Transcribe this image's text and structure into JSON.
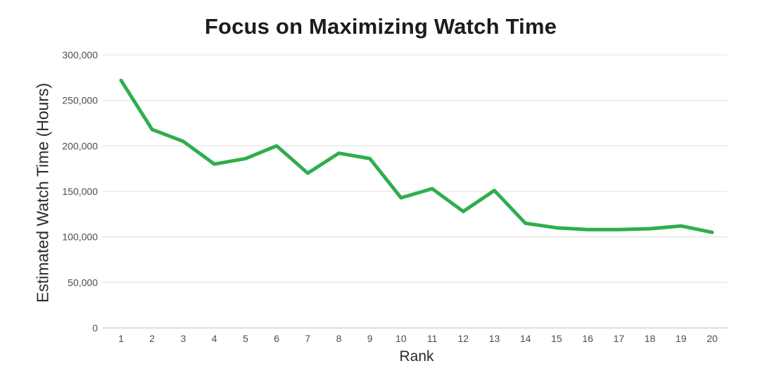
{
  "chart_data": {
    "type": "line",
    "title": "Focus on Maximizing Watch Time",
    "xlabel": "Rank",
    "ylabel": "Estimated Watch Time (Hours)",
    "x": [
      1,
      2,
      3,
      4,
      5,
      6,
      7,
      8,
      9,
      10,
      11,
      12,
      13,
      14,
      15,
      16,
      17,
      18,
      19,
      20
    ],
    "series": [
      {
        "name": "Estimated Watch Time",
        "values": [
          272000,
          218000,
          205000,
          180000,
          186000,
          200000,
          170000,
          192000,
          186000,
          143000,
          153000,
          128000,
          151000,
          115000,
          110000,
          108000,
          108000,
          109000,
          112000,
          105000
        ]
      }
    ],
    "ylim": [
      0,
      300000
    ],
    "ytick_values": [
      0,
      50000,
      100000,
      150000,
      200000,
      250000,
      300000
    ],
    "ytick_labels": [
      "0",
      "50,000",
      "100,000",
      "150,000",
      "200,000",
      "250,000",
      "300,000"
    ],
    "grid": "horizontal",
    "legend": "none",
    "colors": {
      "line": "#2fae4e",
      "gridline": "#e8e8e8",
      "axis_line": "#cbcbcb",
      "tick_label": "#4d4d4d",
      "axis_title": "#2a2a2a",
      "title": "#1c1c1c",
      "background": "#ffffff"
    },
    "line_width": 5
  }
}
